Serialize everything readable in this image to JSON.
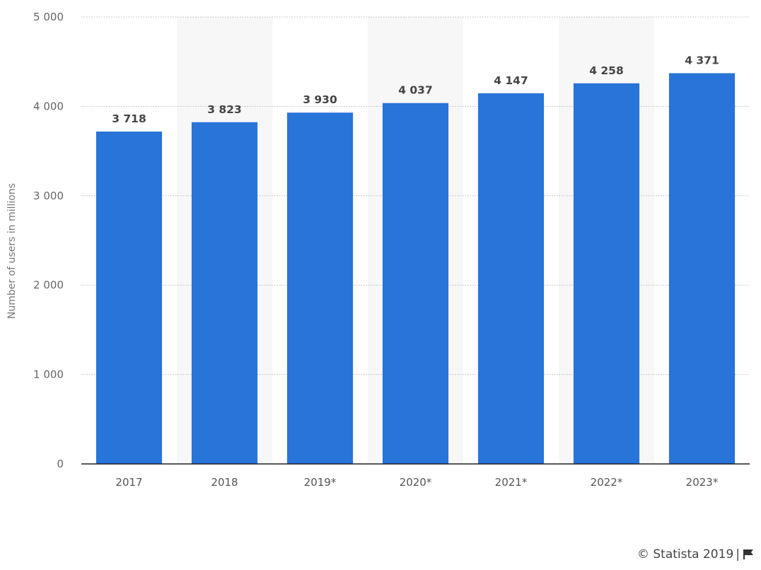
{
  "chart_data": {
    "type": "bar",
    "categories": [
      "2017",
      "2018",
      "2019*",
      "2020*",
      "2021*",
      "2022*",
      "2023*"
    ],
    "values": [
      3718,
      3823,
      3930,
      4037,
      4147,
      4258,
      4371
    ],
    "value_labels": [
      "3 718",
      "3 823",
      "3 930",
      "4 037",
      "4 147",
      "4 258",
      "4 371"
    ],
    "ylabel": "Number of users in millions",
    "ylim": [
      0,
      5000
    ],
    "yticks": [
      0,
      1000,
      2000,
      3000,
      4000,
      5000
    ],
    "ytick_labels": [
      "0",
      "1 000",
      "2 000",
      "3 000",
      "4 000",
      "5 000"
    ],
    "grid": true,
    "bar_color": "#2874d9",
    "band_color": "#f7f7f7"
  },
  "credit": {
    "text": "© Statista 2019",
    "icon": "flag-icon"
  }
}
